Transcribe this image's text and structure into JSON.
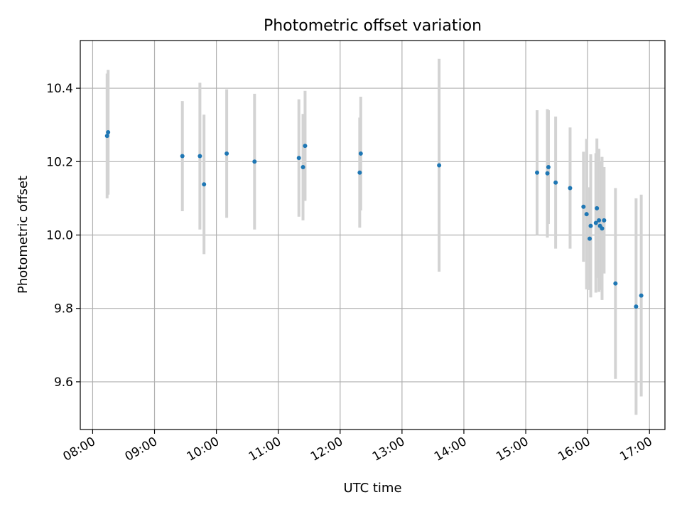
{
  "chart_data": {
    "type": "scatter",
    "title": "Photometric offset variation",
    "xlabel": "UTC time",
    "ylabel": "Photometric offset",
    "xlim": [
      "07:48",
      "17:15"
    ],
    "ylim": [
      9.47,
      10.53
    ],
    "x_ticks": [
      "08:00",
      "09:00",
      "10:00",
      "11:00",
      "12:00",
      "13:00",
      "14:00",
      "15:00",
      "16:00",
      "17:00"
    ],
    "y_ticks": [
      "9.6",
      "9.8",
      "10.0",
      "10.2",
      "10.4"
    ],
    "grid": true,
    "colors": {
      "point": "#1f77b4",
      "errorbar": "#d3d3d3",
      "grid": "#b0b0b0"
    },
    "points": [
      {
        "x": "08:14",
        "y": 10.27,
        "err": 0.17
      },
      {
        "x": "08:15",
        "y": 10.28,
        "err": 0.17
      },
      {
        "x": "09:27",
        "y": 10.215,
        "err": 0.15
      },
      {
        "x": "09:44",
        "y": 10.215,
        "err": 0.2
      },
      {
        "x": "09:48",
        "y": 10.138,
        "err": 0.19
      },
      {
        "x": "10:10",
        "y": 10.222,
        "err": 0.175
      },
      {
        "x": "10:37",
        "y": 10.2,
        "err": 0.185
      },
      {
        "x": "11:20",
        "y": 10.21,
        "err": 0.16
      },
      {
        "x": "11:24",
        "y": 10.185,
        "err": 0.145
      },
      {
        "x": "11:26",
        "y": 10.243,
        "err": 0.15
      },
      {
        "x": "12:19",
        "y": 10.17,
        "err": 0.15
      },
      {
        "x": "12:20",
        "y": 10.222,
        "err": 0.155
      },
      {
        "x": "13:36",
        "y": 10.19,
        "err": 0.29
      },
      {
        "x": "15:11",
        "y": 10.17,
        "err": 0.17
      },
      {
        "x": "15:21",
        "y": 10.168,
        "err": 0.175
      },
      {
        "x": "15:22",
        "y": 10.185,
        "err": 0.155
      },
      {
        "x": "15:29",
        "y": 10.143,
        "err": 0.18
      },
      {
        "x": "15:43",
        "y": 10.128,
        "err": 0.165
      },
      {
        "x": "15:56",
        "y": 10.077,
        "err": 0.15
      },
      {
        "x": "15:59",
        "y": 10.057,
        "err": 0.205
      },
      {
        "x": "16:02",
        "y": 9.99,
        "err": 0.14
      },
      {
        "x": "16:03",
        "y": 10.025,
        "err": 0.195
      },
      {
        "x": "16:08",
        "y": 10.033,
        "err": 0.19
      },
      {
        "x": "16:09",
        "y": 10.073,
        "err": 0.19
      },
      {
        "x": "16:11",
        "y": 10.04,
        "err": 0.195
      },
      {
        "x": "16:12",
        "y": 10.025,
        "err": 0.175
      },
      {
        "x": "16:14",
        "y": 10.018,
        "err": 0.195
      },
      {
        "x": "16:16",
        "y": 10.04,
        "err": 0.145
      },
      {
        "x": "16:27",
        "y": 9.868,
        "err": 0.26
      },
      {
        "x": "16:47",
        "y": 9.805,
        "err": 0.295
      },
      {
        "x": "16:52",
        "y": 9.835,
        "err": 0.275
      }
    ]
  }
}
